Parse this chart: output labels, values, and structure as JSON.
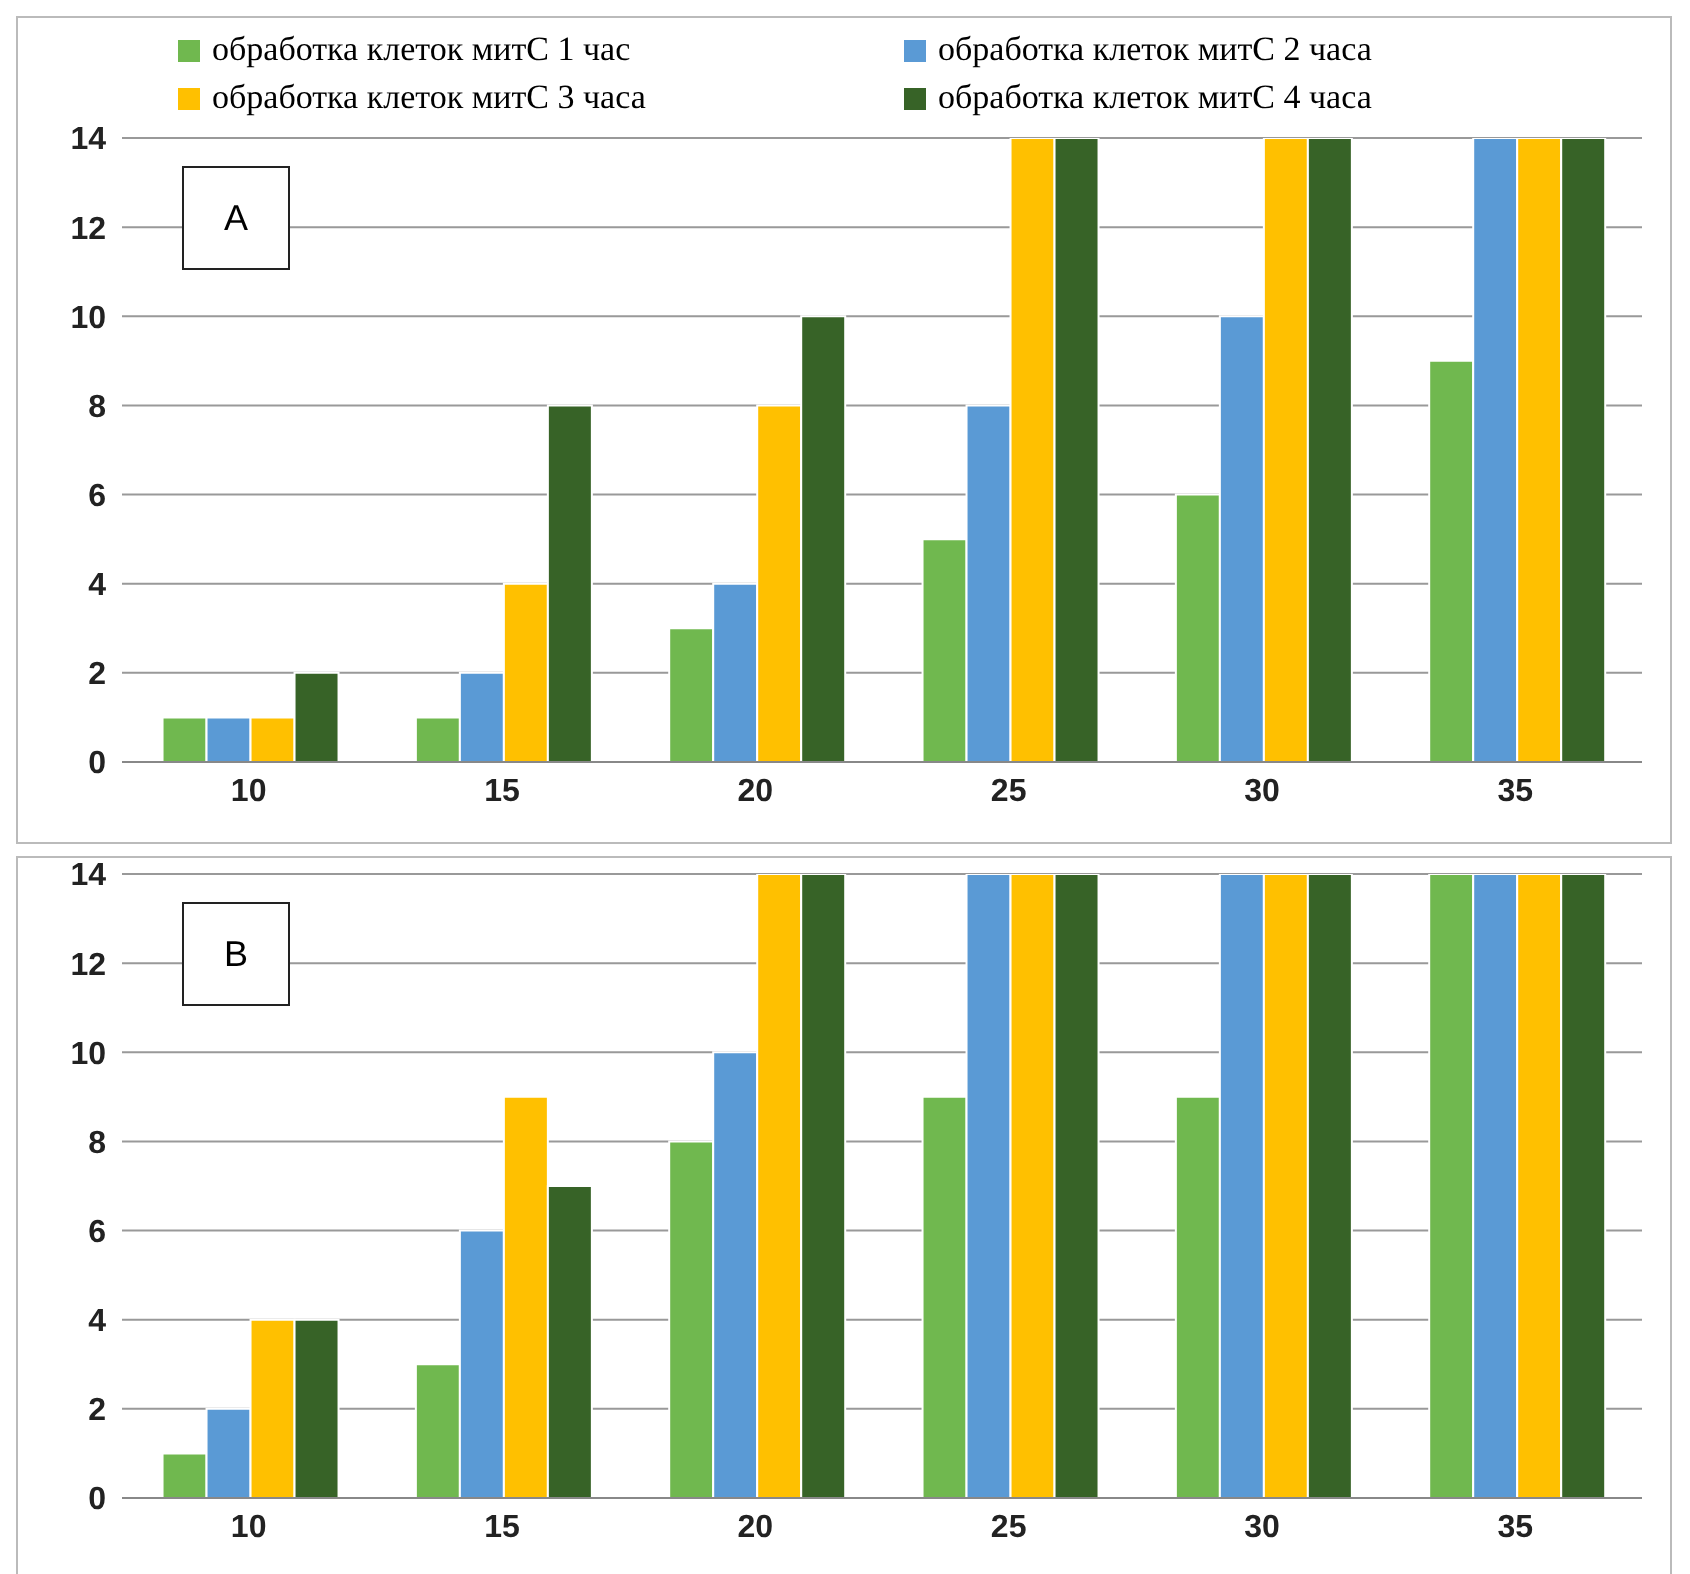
{
  "chart_data": [
    {
      "type": "bar",
      "title": "A",
      "categories": [
        "10",
        "15",
        "20",
        "25",
        "30",
        "35"
      ],
      "series": [
        {
          "name": "обработка клеток митС 1 час",
          "color": "#70b84f",
          "values": [
            1,
            1,
            3,
            5,
            6,
            9
          ]
        },
        {
          "name": "обработка клеток митС 2 часа",
          "color": "#5a9ad5",
          "values": [
            1,
            2,
            4,
            8,
            10,
            14
          ]
        },
        {
          "name": "обработка клеток митС 3 часа",
          "color": "#ffc000",
          "values": [
            1,
            4,
            8,
            14,
            14,
            14
          ]
        },
        {
          "name": "обработка клеток митС 4 часа",
          "color": "#376327",
          "values": [
            2,
            8,
            10,
            14,
            14,
            14
          ]
        }
      ],
      "ylim": [
        0,
        14
      ],
      "yticks": [
        0,
        2,
        4,
        6,
        8,
        10,
        12,
        14
      ],
      "grid": "y",
      "legend": "top"
    },
    {
      "type": "bar",
      "title": "B",
      "categories": [
        "10",
        "15",
        "20",
        "25",
        "30",
        "35"
      ],
      "series": [
        {
          "color": "#70b84f",
          "values": [
            1,
            3,
            8,
            9,
            9,
            14
          ]
        },
        {
          "color": "#5a9ad5",
          "values": [
            2,
            6,
            10,
            14,
            14,
            14
          ]
        },
        {
          "color": "#ffc000",
          "values": [
            4,
            9,
            14,
            14,
            14,
            14
          ]
        },
        {
          "color": "#376327",
          "values": [
            4,
            7,
            14,
            14,
            14,
            14
          ]
        }
      ],
      "ylim": [
        0,
        14
      ],
      "yticks": [
        0,
        2,
        4,
        6,
        8,
        10,
        12,
        14
      ],
      "grid": "y"
    }
  ]
}
